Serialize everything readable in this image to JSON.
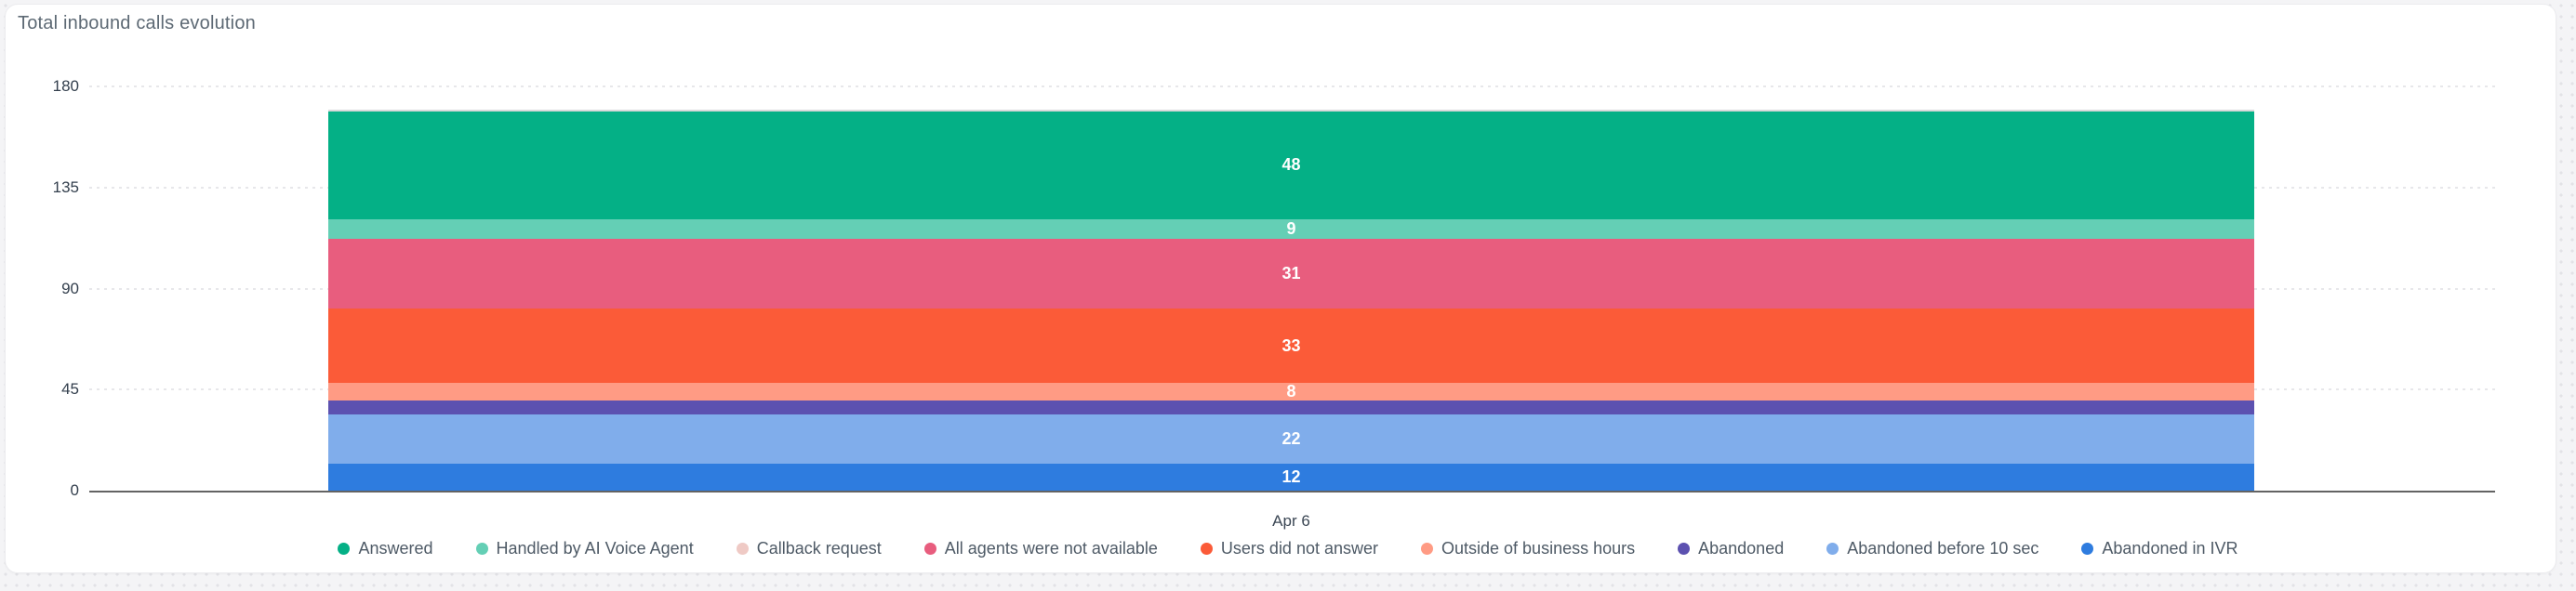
{
  "card": {
    "title": "Total inbound calls evolution"
  },
  "chart_data": {
    "type": "bar",
    "stacked": true,
    "orientation": "vertical",
    "title": "Total inbound calls evolution",
    "categories": [
      "Apr 6"
    ],
    "series": [
      {
        "name": "Answered",
        "color": "#04b086",
        "values": [
          48
        ],
        "label_shown": true
      },
      {
        "name": "Handled by AI Voice Agent",
        "color": "#64cfb5",
        "values": [
          9
        ],
        "label_shown": true
      },
      {
        "name": "Callback request",
        "color": "#efcac5",
        "values": [
          0
        ],
        "label_shown": false
      },
      {
        "name": "All agents were not available",
        "color": "#e85d7e",
        "values": [
          31
        ],
        "label_shown": true
      },
      {
        "name": "Users did not answer",
        "color": "#fb5b38",
        "values": [
          33
        ],
        "label_shown": true
      },
      {
        "name": "Outside of business hours",
        "color": "#ff9b84",
        "values": [
          8
        ],
        "label_shown": true
      },
      {
        "name": "Abandoned",
        "color": "#5c51b0",
        "values": [
          6
        ],
        "label_shown": false
      },
      {
        "name": "Abandoned before 10 sec",
        "color": "#80adeb",
        "values": [
          22
        ],
        "label_shown": true
      },
      {
        "name": "Abandoned in IVR",
        "color": "#2e7cdf",
        "values": [
          12
        ],
        "label_shown": true
      }
    ],
    "total": 169,
    "xlabel": "",
    "ylabel": "",
    "ylim": [
      0,
      180
    ],
    "yticks": [
      0,
      45,
      90,
      135,
      180
    ],
    "grid": "horizontal-dotted",
    "legend_position": "bottom"
  }
}
